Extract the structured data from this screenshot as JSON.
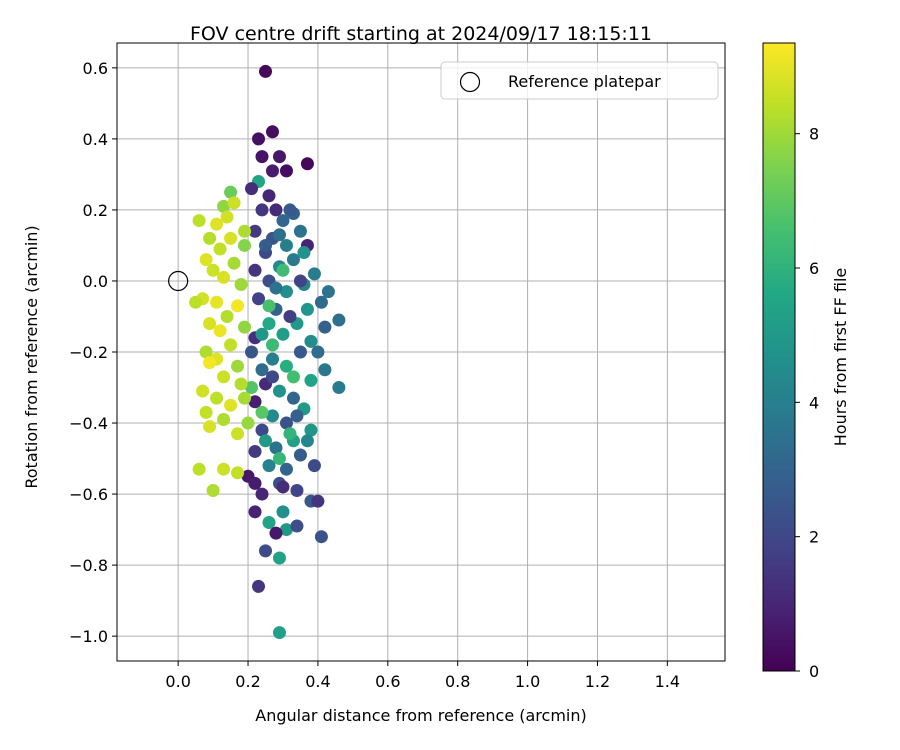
{
  "chart_data": {
    "type": "scatter",
    "title": "FOV centre drift starting at 2024/09/17 18:15:11",
    "xlabel": "Angular distance from reference (arcmin)",
    "ylabel": "Rotation from reference (arcmin)",
    "xlim": [
      -0.175,
      1.565
    ],
    "ylim": [
      -1.07,
      0.67
    ],
    "xticks": [
      "0.0",
      "0.2",
      "0.4",
      "0.6",
      "0.8",
      "1.0",
      "1.2",
      "1.4"
    ],
    "xtick_values": [
      0.0,
      0.2,
      0.4,
      0.6,
      0.8,
      1.0,
      1.2,
      1.4
    ],
    "yticks": [
      "0.6",
      "0.4",
      "0.2",
      "0.0",
      "−0.2",
      "−0.4",
      "−0.6",
      "−0.8",
      "−1.0"
    ],
    "ytick_values": [
      0.6,
      0.4,
      0.2,
      0.0,
      -0.2,
      -0.4,
      -0.6,
      -0.8,
      -1.0
    ],
    "grid": true,
    "legend": {
      "placement": "top-right",
      "entries": [
        "Reference platepar"
      ]
    },
    "reference_point": {
      "x": 0.0,
      "y": 0.0
    },
    "colorbar": {
      "label": "Hours from first FF file",
      "colormap": "viridis",
      "range": [
        0,
        9.35
      ],
      "ticks": [
        "0",
        "2",
        "4",
        "6",
        "8"
      ],
      "tick_values": [
        0,
        2,
        4,
        6,
        8
      ]
    },
    "colors": [
      "#440154",
      "#482475",
      "#414487",
      "#355f8d",
      "#2a788e",
      "#21918c",
      "#22a884",
      "#44bf70",
      "#7ad151",
      "#bddf26",
      "#fde725"
    ],
    "points": [
      {
        "x": 0.25,
        "y": 0.59,
        "c": 0.2
      },
      {
        "x": 0.27,
        "y": 0.42,
        "c": 0.3
      },
      {
        "x": 0.23,
        "y": 0.4,
        "c": 0.4
      },
      {
        "x": 0.37,
        "y": 0.33,
        "c": 0.2
      },
      {
        "x": 0.24,
        "y": 0.35,
        "c": 0.5
      },
      {
        "x": 0.29,
        "y": 0.35,
        "c": 0.6
      },
      {
        "x": 0.31,
        "y": 0.31,
        "c": 0.3
      },
      {
        "x": 0.27,
        "y": 0.31,
        "c": 0.7
      },
      {
        "x": 0.23,
        "y": 0.28,
        "c": 5.5
      },
      {
        "x": 0.26,
        "y": 0.24,
        "c": 1.0
      },
      {
        "x": 0.21,
        "y": 0.26,
        "c": 1.2
      },
      {
        "x": 0.28,
        "y": 0.2,
        "c": 1.1
      },
      {
        "x": 0.33,
        "y": 0.19,
        "c": 2.8
      },
      {
        "x": 0.3,
        "y": 0.17,
        "c": 3.1
      },
      {
        "x": 0.24,
        "y": 0.2,
        "c": 1.5
      },
      {
        "x": 0.22,
        "y": 0.14,
        "c": 1.6
      },
      {
        "x": 0.35,
        "y": 0.14,
        "c": 3.5
      },
      {
        "x": 0.37,
        "y": 0.1,
        "c": 0.9
      },
      {
        "x": 0.27,
        "y": 0.12,
        "c": 2.5
      },
      {
        "x": 0.31,
        "y": 0.1,
        "c": 4.0
      },
      {
        "x": 0.25,
        "y": 0.08,
        "c": 2.0
      },
      {
        "x": 0.29,
        "y": 0.04,
        "c": 4.3
      },
      {
        "x": 0.22,
        "y": 0.03,
        "c": 1.4
      },
      {
        "x": 0.33,
        "y": 0.06,
        "c": 3.8
      },
      {
        "x": 0.39,
        "y": 0.02,
        "c": 3.9
      },
      {
        "x": 0.36,
        "y": -0.01,
        "c": 4.2
      },
      {
        "x": 0.26,
        "y": 0.0,
        "c": 2.2
      },
      {
        "x": 0.31,
        "y": -0.03,
        "c": 4.6
      },
      {
        "x": 0.43,
        "y": -0.03,
        "c": 3.6
      },
      {
        "x": 0.41,
        "y": -0.06,
        "c": 3.2
      },
      {
        "x": 0.37,
        "y": -0.08,
        "c": 4.8
      },
      {
        "x": 0.23,
        "y": -0.05,
        "c": 1.8
      },
      {
        "x": 0.28,
        "y": -0.08,
        "c": 3.0
      },
      {
        "x": 0.34,
        "y": -0.12,
        "c": 5.0
      },
      {
        "x": 0.46,
        "y": -0.11,
        "c": 3.4
      },
      {
        "x": 0.42,
        "y": -0.13,
        "c": 2.9
      },
      {
        "x": 0.26,
        "y": -0.12,
        "c": 5.6
      },
      {
        "x": 0.3,
        "y": -0.15,
        "c": 5.2
      },
      {
        "x": 0.38,
        "y": -0.17,
        "c": 4.5
      },
      {
        "x": 0.22,
        "y": -0.16,
        "c": 1.3
      },
      {
        "x": 0.35,
        "y": -0.2,
        "c": 2.6
      },
      {
        "x": 0.27,
        "y": -0.22,
        "c": 4.0
      },
      {
        "x": 0.31,
        "y": -0.24,
        "c": 5.8
      },
      {
        "x": 0.24,
        "y": -0.25,
        "c": 3.3
      },
      {
        "x": 0.42,
        "y": -0.25,
        "c": 3.7
      },
      {
        "x": 0.38,
        "y": -0.28,
        "c": 5.4
      },
      {
        "x": 0.46,
        "y": -0.3,
        "c": 3.9
      },
      {
        "x": 0.25,
        "y": -0.29,
        "c": 1.1
      },
      {
        "x": 0.29,
        "y": -0.31,
        "c": 4.7
      },
      {
        "x": 0.33,
        "y": -0.33,
        "c": 3.1
      },
      {
        "x": 0.22,
        "y": -0.34,
        "c": 0.8
      },
      {
        "x": 0.36,
        "y": -0.36,
        "c": 5.0
      },
      {
        "x": 0.27,
        "y": -0.38,
        "c": 4.4
      },
      {
        "x": 0.31,
        "y": -0.4,
        "c": 2.4
      },
      {
        "x": 0.38,
        "y": -0.42,
        "c": 4.9
      },
      {
        "x": 0.24,
        "y": -0.42,
        "c": 2.0
      },
      {
        "x": 0.33,
        "y": -0.45,
        "c": 5.3
      },
      {
        "x": 0.28,
        "y": -0.47,
        "c": 3.6
      },
      {
        "x": 0.35,
        "y": -0.49,
        "c": 2.7
      },
      {
        "x": 0.22,
        "y": -0.48,
        "c": 1.6
      },
      {
        "x": 0.26,
        "y": -0.52,
        "c": 4.1
      },
      {
        "x": 0.31,
        "y": -0.53,
        "c": 3.0
      },
      {
        "x": 0.39,
        "y": -0.52,
        "c": 2.1
      },
      {
        "x": 0.2,
        "y": -0.55,
        "c": 0.6
      },
      {
        "x": 0.29,
        "y": -0.57,
        "c": 2.3
      },
      {
        "x": 0.34,
        "y": -0.59,
        "c": 1.9
      },
      {
        "x": 0.24,
        "y": -0.6,
        "c": 1.0
      },
      {
        "x": 0.38,
        "y": -0.62,
        "c": 2.6
      },
      {
        "x": 0.4,
        "y": -0.62,
        "c": 1.4
      },
      {
        "x": 0.3,
        "y": -0.65,
        "c": 4.6
      },
      {
        "x": 0.22,
        "y": -0.65,
        "c": 0.9
      },
      {
        "x": 0.26,
        "y": -0.68,
        "c": 5.5
      },
      {
        "x": 0.31,
        "y": -0.7,
        "c": 5.0
      },
      {
        "x": 0.28,
        "y": -0.71,
        "c": 0.6
      },
      {
        "x": 0.34,
        "y": -0.69,
        "c": 2.2
      },
      {
        "x": 0.41,
        "y": -0.72,
        "c": 2.4
      },
      {
        "x": 0.25,
        "y": -0.76,
        "c": 2.1
      },
      {
        "x": 0.29,
        "y": -0.78,
        "c": 5.4
      },
      {
        "x": 0.23,
        "y": -0.86,
        "c": 1.5
      },
      {
        "x": 0.29,
        "y": -0.99,
        "c": 5.3
      },
      {
        "x": 0.32,
        "y": -0.43,
        "c": 6.1
      },
      {
        "x": 0.27,
        "y": -0.18,
        "c": 6.3
      },
      {
        "x": 0.3,
        "y": 0.03,
        "c": 6.4
      },
      {
        "x": 0.33,
        "y": -0.27,
        "c": 6.5
      },
      {
        "x": 0.26,
        "y": -0.07,
        "c": 6.6
      },
      {
        "x": 0.29,
        "y": -0.5,
        "c": 6.2
      },
      {
        "x": 0.21,
        "y": -0.3,
        "c": 6.8
      },
      {
        "x": 0.24,
        "y": -0.37,
        "c": 6.9
      },
      {
        "x": 0.15,
        "y": 0.25,
        "c": 7.2
      },
      {
        "x": 0.13,
        "y": 0.21,
        "c": 7.8
      },
      {
        "x": 0.16,
        "y": 0.22,
        "c": 8.6
      },
      {
        "x": 0.06,
        "y": 0.17,
        "c": 8.4
      },
      {
        "x": 0.14,
        "y": 0.18,
        "c": 8.7
      },
      {
        "x": 0.11,
        "y": 0.16,
        "c": 8.9
      },
      {
        "x": 0.19,
        "y": 0.14,
        "c": 8.2
      },
      {
        "x": 0.09,
        "y": 0.12,
        "c": 8.3
      },
      {
        "x": 0.15,
        "y": 0.12,
        "c": 8.8
      },
      {
        "x": 0.19,
        "y": 0.1,
        "c": 7.6
      },
      {
        "x": 0.12,
        "y": 0.09,
        "c": 8.5
      },
      {
        "x": 0.08,
        "y": 0.06,
        "c": 8.9
      },
      {
        "x": 0.16,
        "y": 0.05,
        "c": 8.1
      },
      {
        "x": 0.1,
        "y": 0.03,
        "c": 8.6
      },
      {
        "x": 0.13,
        "y": 0.01,
        "c": 8.8
      },
      {
        "x": 0.18,
        "y": -0.01,
        "c": 8.0
      },
      {
        "x": 0.07,
        "y": -0.05,
        "c": 8.7
      },
      {
        "x": 0.11,
        "y": -0.06,
        "c": 9.0
      },
      {
        "x": 0.05,
        "y": -0.06,
        "c": 8.4
      },
      {
        "x": 0.17,
        "y": -0.07,
        "c": 9.2
      },
      {
        "x": 0.14,
        "y": -0.1,
        "c": 8.3
      },
      {
        "x": 0.09,
        "y": -0.12,
        "c": 8.8
      },
      {
        "x": 0.19,
        "y": -0.13,
        "c": 7.8
      },
      {
        "x": 0.12,
        "y": -0.14,
        "c": 9.1
      },
      {
        "x": 0.15,
        "y": -0.18,
        "c": 8.5
      },
      {
        "x": 0.08,
        "y": -0.2,
        "c": 8.2
      },
      {
        "x": 0.11,
        "y": -0.22,
        "c": 8.9
      },
      {
        "x": 0.17,
        "y": -0.24,
        "c": 8.0
      },
      {
        "x": 0.09,
        "y": -0.23,
        "c": 9.2
      },
      {
        "x": 0.13,
        "y": -0.27,
        "c": 8.6
      },
      {
        "x": 0.18,
        "y": -0.29,
        "c": 8.3
      },
      {
        "x": 0.07,
        "y": -0.31,
        "c": 8.7
      },
      {
        "x": 0.11,
        "y": -0.33,
        "c": 8.4
      },
      {
        "x": 0.15,
        "y": -0.35,
        "c": 8.9
      },
      {
        "x": 0.19,
        "y": -0.33,
        "c": 8.1
      },
      {
        "x": 0.08,
        "y": -0.37,
        "c": 8.5
      },
      {
        "x": 0.13,
        "y": -0.39,
        "c": 8.2
      },
      {
        "x": 0.09,
        "y": -0.41,
        "c": 8.8
      },
      {
        "x": 0.17,
        "y": -0.43,
        "c": 8.6
      },
      {
        "x": 0.2,
        "y": -0.4,
        "c": 7.9
      },
      {
        "x": 0.06,
        "y": -0.53,
        "c": 8.4
      },
      {
        "x": 0.13,
        "y": -0.53,
        "c": 8.6
      },
      {
        "x": 0.17,
        "y": -0.54,
        "c": 8.5
      },
      {
        "x": 0.1,
        "y": -0.59,
        "c": 8.2
      },
      {
        "x": 0.22,
        "y": -0.57,
        "c": 0.7
      },
      {
        "x": 0.25,
        "y": 0.1,
        "c": 2.7
      },
      {
        "x": 0.28,
        "y": -0.02,
        "c": 3.5
      },
      {
        "x": 0.32,
        "y": -0.1,
        "c": 1.7
      },
      {
        "x": 0.36,
        "y": 0.08,
        "c": 4.7
      },
      {
        "x": 0.4,
        "y": -0.2,
        "c": 3.3
      },
      {
        "x": 0.24,
        "y": -0.15,
        "c": 4.9
      },
      {
        "x": 0.34,
        "y": -0.38,
        "c": 2.8
      },
      {
        "x": 0.3,
        "y": -0.58,
        "c": 1.2
      },
      {
        "x": 0.27,
        "y": -0.27,
        "c": 2.0
      },
      {
        "x": 0.37,
        "y": -0.45,
        "c": 4.3
      },
      {
        "x": 0.21,
        "y": -0.2,
        "c": 2.5
      },
      {
        "x": 0.35,
        "y": 0.0,
        "c": 1.9
      },
      {
        "x": 0.29,
        "y": 0.13,
        "c": 3.4
      },
      {
        "x": 0.32,
        "y": 0.2,
        "c": 2.6
      },
      {
        "x": 0.25,
        "y": -0.45,
        "c": 5.1
      }
    ]
  }
}
